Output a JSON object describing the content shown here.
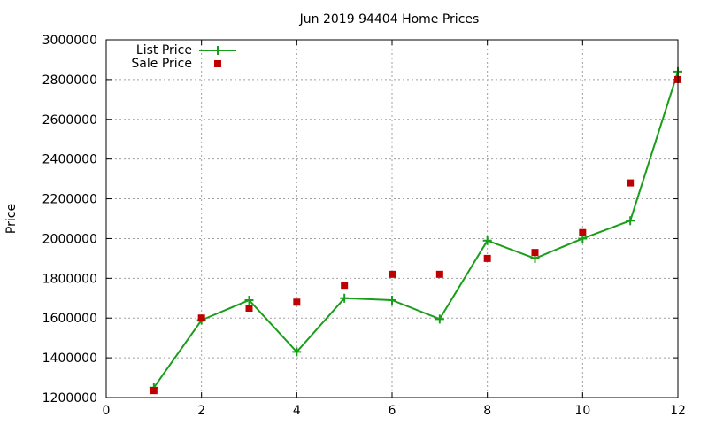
{
  "chart_data": {
    "type": "line",
    "title": "Jun 2019 94404 Home Prices",
    "xlabel": "",
    "ylabel": "Price",
    "xlim": [
      0,
      12
    ],
    "ylim": [
      1200000,
      3000000
    ],
    "xticks": [
      "0",
      "2",
      "4",
      "6",
      "8",
      "10",
      "12"
    ],
    "yticks": [
      "1200000",
      "1400000",
      "1600000",
      "1800000",
      "2000000",
      "2200000",
      "2400000",
      "2600000",
      "2800000",
      "3000000"
    ],
    "grid": true,
    "legend_position": "top-left",
    "series": [
      {
        "name": "List Price",
        "style": "line+cross",
        "color": "#1a9e1a",
        "points": [
          [
            1,
            1250000
          ],
          [
            2,
            1590000
          ],
          [
            3,
            1690000
          ],
          [
            4,
            1430000
          ],
          [
            5,
            1700000
          ],
          [
            6,
            1690000
          ],
          [
            7,
            1595000
          ],
          [
            8,
            1990000
          ],
          [
            9,
            1900000
          ],
          [
            10,
            2000000
          ],
          [
            11,
            2090000
          ],
          [
            12,
            2840000
          ]
        ]
      },
      {
        "name": "Sale Price",
        "style": "square",
        "color": "#c00000",
        "points": [
          [
            1,
            1235000
          ],
          [
            2,
            1600000
          ],
          [
            3,
            1650000
          ],
          [
            4,
            1680000
          ],
          [
            5,
            1765000
          ],
          [
            6,
            1820000
          ],
          [
            7,
            1820000
          ],
          [
            8,
            1900000
          ],
          [
            9,
            1930000
          ],
          [
            10,
            2030000
          ],
          [
            11,
            2280000
          ],
          [
            12,
            2800000
          ]
        ]
      }
    ]
  }
}
